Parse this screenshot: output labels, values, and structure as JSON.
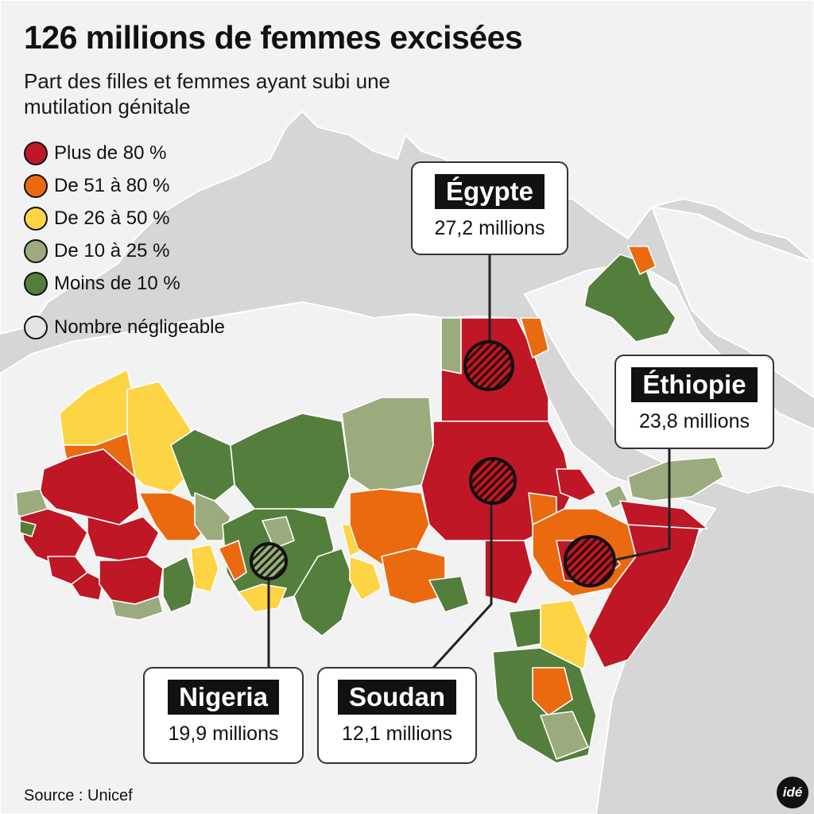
{
  "title": "126 millions de femmes excisées",
  "subtitle": "Part des filles et femmes ayant subi une mutilation génitale",
  "legend": [
    {
      "label": "Plus de 80 %",
      "color": "#bf1725"
    },
    {
      "label": "De 51 à 80 %",
      "color": "#eb6a10"
    },
    {
      "label": "De 26 à 50 %",
      "color": "#fcd444"
    },
    {
      "label": "De 10 à 25 %",
      "color": "#9bab7e"
    },
    {
      "label": "Moins de 10 %",
      "color": "#547e3c"
    },
    {
      "label": "Nombre négligeable",
      "color": "#e4e4e4"
    }
  ],
  "callouts": {
    "egypte": {
      "name": "Égypte",
      "count": "27,2 millions"
    },
    "ethiopie": {
      "name": "Éthiopie",
      "count": "23,8 millions"
    },
    "nigeria": {
      "name": "Nigeria",
      "count": "19,9 millions"
    },
    "soudan": {
      "name": "Soudan",
      "count": "12,1 millions"
    }
  },
  "source": "Source : Unicef",
  "logo": "idé",
  "colors": {
    "sea": "#d6d6d6",
    "land": "#f2f2f2",
    "border": "#ffffff"
  }
}
